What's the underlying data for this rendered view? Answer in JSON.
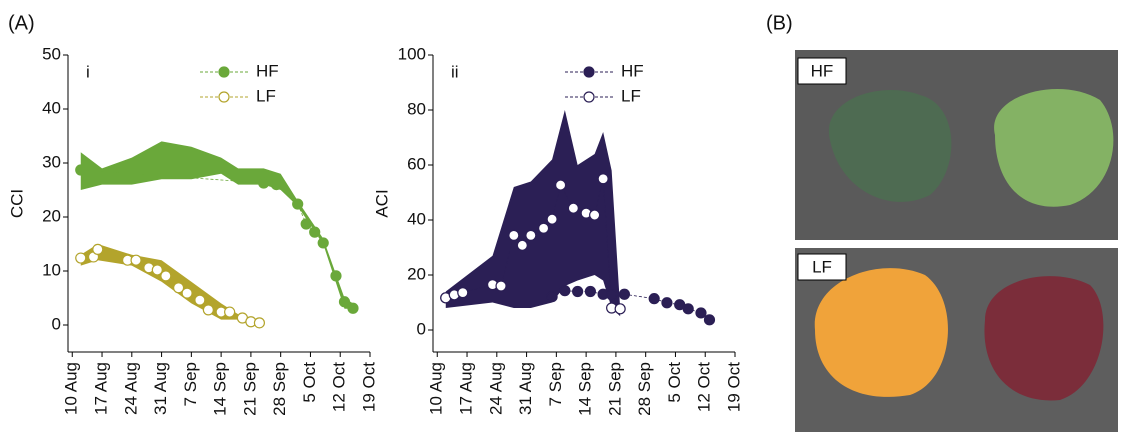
{
  "panel_labels": [
    "(A)",
    "(B)"
  ],
  "photo_labels": [
    "HF",
    "LF"
  ],
  "chart_data": [
    {
      "type": "line",
      "title": "i",
      "ylabel": "CCI",
      "xlim": [
        "9 Aug",
        "19 Oct"
      ],
      "ylim": [
        -5,
        50
      ],
      "xticks": [
        "10 Aug",
        "17 Aug",
        "24 Aug",
        "31 Aug",
        "7 Sep",
        "14 Sep",
        "21 Sep",
        "28 Sep",
        "5 Oct",
        "12 Oct",
        "19 Oct"
      ],
      "yticks": [
        0,
        10,
        20,
        30,
        40,
        50
      ],
      "series": [
        {
          "name": "HF",
          "color": "#6aa83a",
          "marker": "filled",
          "x": [
            "12 Aug",
            "24 Sep",
            "27 Sep",
            "2 Oct",
            "4 Oct",
            "6 Oct",
            "8 Oct",
            "11 Oct",
            "13 Oct",
            "15 Oct"
          ],
          "values": [
            28.7,
            26.3,
            26,
            22.4,
            18.7,
            17.2,
            15.2,
            9.1,
            4.3,
            3.1
          ],
          "band": {
            "x": [
              "12 Aug",
              "17 Aug",
              "24 Aug",
              "31 Aug",
              "7 Sep",
              "14 Sep",
              "18 Sep",
              "24 Sep",
              "28 Sep",
              "2 Oct",
              "8 Oct",
              "13 Oct",
              "15 Oct"
            ],
            "low": [
              25,
              26,
              26,
              27,
              27,
              28,
              26,
              26,
              25,
              22,
              15,
              3,
              3
            ],
            "high": [
              32,
              29,
              31,
              34,
              33,
              31,
              29,
              29,
              28,
              23,
              16,
              5,
              4
            ]
          }
        },
        {
          "name": "LF",
          "color": "#b3a42c",
          "marker": "open",
          "x": [
            "12 Aug",
            "15 Aug",
            "16 Aug",
            "23 Aug",
            "25 Aug",
            "28 Aug",
            "30 Aug",
            "1 Sep",
            "4 Sep",
            "6 Sep",
            "9 Sep",
            "11 Sep",
            "14 Sep",
            "16 Sep",
            "19 Sep",
            "21 Sep",
            "23 Sep"
          ],
          "values": [
            12.4,
            12.6,
            14,
            12,
            12,
            10.6,
            10.2,
            9.1,
            6.9,
            5.9,
            4.6,
            2.8,
            2.4,
            2.4,
            1.3,
            0.6,
            0.4
          ],
          "band": {
            "x": [
              "12 Aug",
              "16 Aug",
              "24 Aug",
              "31 Aug",
              "7 Sep",
              "14 Sep",
              "18 Sep"
            ],
            "low": [
              11,
              12,
              11,
              8,
              4,
              1,
              1
            ],
            "high": [
              13,
              15,
              13,
              12,
              8,
              4,
              2
            ]
          }
        }
      ]
    },
    {
      "type": "line",
      "title": "ii",
      "ylabel": "ACI",
      "xlim": [
        "9 Aug",
        "19 Oct"
      ],
      "ylim": [
        -8,
        100
      ],
      "xticks": [
        "10 Aug",
        "17 Aug",
        "24 Aug",
        "31 Aug",
        "7 Sep",
        "14 Sep",
        "21 Sep",
        "28 Sep",
        "5 Oct",
        "12 Oct",
        "19 Oct"
      ],
      "yticks": [
        0,
        20,
        40,
        60,
        80,
        100
      ],
      "series": [
        {
          "name": "HF",
          "color": "#2b1f55",
          "marker": "filled",
          "x": [
            "12 Aug",
            "6 Sep",
            "9 Sep",
            "12 Sep",
            "15 Sep",
            "18 Sep",
            "20 Sep",
            "23 Sep",
            "30 Sep",
            "3 Oct",
            "6 Oct",
            "8 Oct",
            "11 Oct",
            "13 Oct"
          ],
          "values": [
            11.7,
            12.1,
            14.3,
            14,
            14,
            13,
            12.8,
            13,
            11.4,
            9.9,
            9.2,
            7.7,
            6.2,
            3.7
          ]
        },
        {
          "name": "LF",
          "color": "#2b1f55",
          "marker": "open",
          "x": [
            "12 Aug",
            "14 Aug",
            "16 Aug",
            "23 Aug",
            "25 Aug",
            "28 Aug",
            "30 Aug",
            "1 Sep",
            "4 Sep",
            "6 Sep",
            "8 Sep",
            "11 Sep",
            "14 Sep",
            "16 Sep",
            "18 Sep",
            "20 Sep",
            "22 Sep"
          ],
          "values": [
            11.7,
            12.8,
            13.6,
            16.5,
            16,
            34.4,
            30.8,
            34.4,
            37,
            40.3,
            52.7,
            44.3,
            42.5,
            41.8,
            55,
            8,
            7.7
          ],
          "band": {
            "x": [
              "12 Aug",
              "23 Aug",
              "28 Aug",
              "1 Sep",
              "6 Sep",
              "9 Sep",
              "12 Sep",
              "16 Sep",
              "18 Sep",
              "20 Sep",
              "22 Sep"
            ],
            "low": [
              8,
              10,
              8,
              8,
              10,
              16,
              18,
              20,
              18,
              8,
              5
            ],
            "high": [
              14,
              27,
              52,
              54,
              62,
              80,
              60,
              64,
              72,
              58,
              8
            ]
          }
        }
      ]
    }
  ]
}
